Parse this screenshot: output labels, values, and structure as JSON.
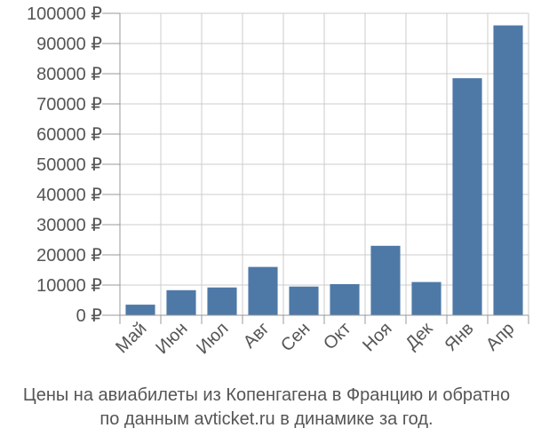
{
  "colors": {
    "bar": "#4e79a7",
    "grid": "#cccccc",
    "axis": "#999999",
    "text": "#555555"
  },
  "caption": {
    "line1": "Цены на авиабилеты из Копенгагена в Францию и обратно",
    "line2": "по данным avticket.ru в динамике за год."
  },
  "chart_data": {
    "type": "bar",
    "categories": [
      "Май",
      "Июн",
      "Июл",
      "Авг",
      "Сен",
      "Окт",
      "Ноя",
      "Дек",
      "Янв",
      "Апр"
    ],
    "values": [
      3500,
      8300,
      9200,
      16000,
      9500,
      10300,
      23000,
      11000,
      78500,
      96000
    ],
    "y_tick_labels": [
      "0 ₽",
      "10000 ₽",
      "20000 ₽",
      "30000 ₽",
      "40000 ₽",
      "50000 ₽",
      "60000 ₽",
      "70000 ₽",
      "80000 ₽",
      "90000 ₽",
      "100000 ₽"
    ],
    "y_ticks": [
      0,
      10000,
      20000,
      30000,
      40000,
      50000,
      60000,
      70000,
      80000,
      90000,
      100000
    ],
    "ylim": [
      0,
      100000
    ],
    "grid": true,
    "legend": false
  }
}
